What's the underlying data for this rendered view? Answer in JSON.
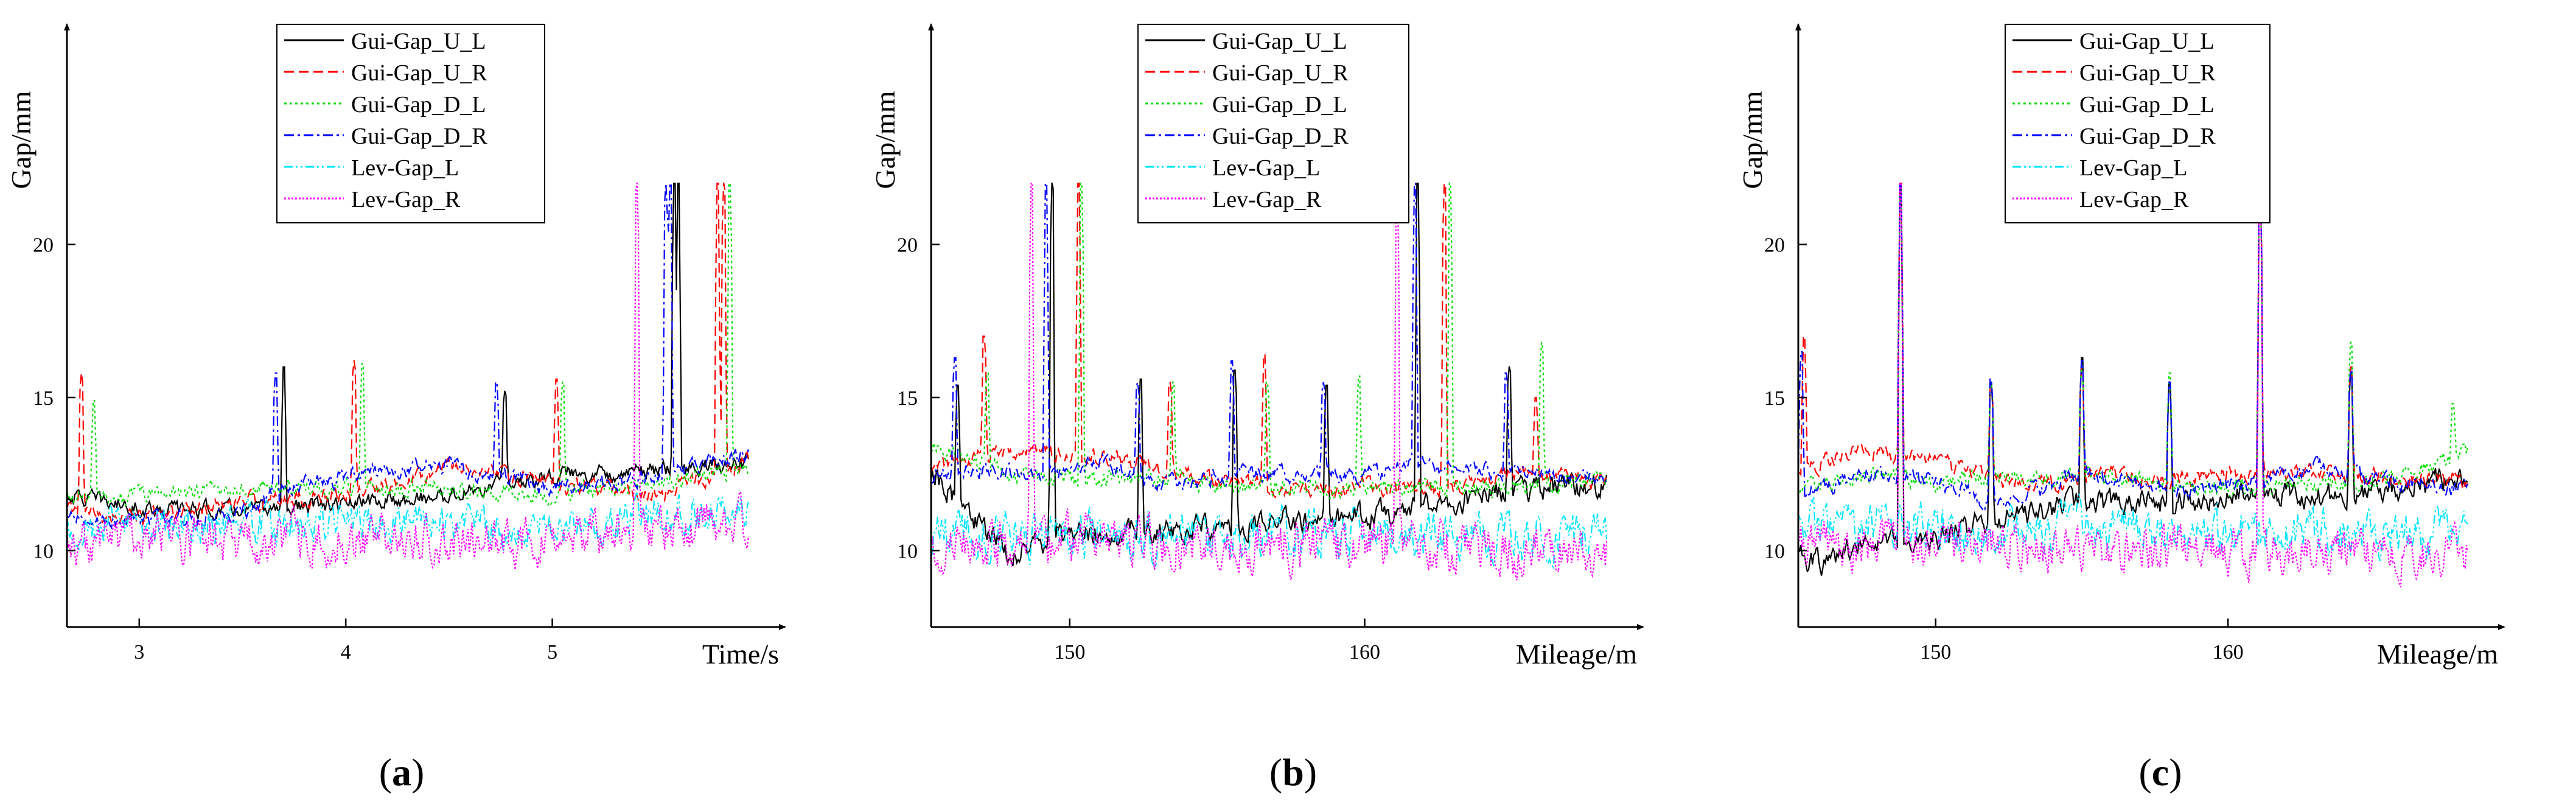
{
  "series_styles": [
    {
      "name": "Gui-Gap_U_L",
      "color": "#000000",
      "dash": "solid"
    },
    {
      "name": "Gui-Gap_U_R",
      "color": "#ff0000",
      "dash": "dashed"
    },
    {
      "name": "Gui-Gap_D_L",
      "color": "#00dd00",
      "dash": "dotted"
    },
    {
      "name": "Gui-Gap_D_R",
      "color": "#0000ff",
      "dash": "dashdot"
    },
    {
      "name": "Lev-Gap_L",
      "color": "#00e5ff",
      "dash": "dashdotdot"
    },
    {
      "name": "Lev-Gap_R",
      "color": "#ff00ff",
      "dash": "short-dot"
    }
  ],
  "chart_data": [
    {
      "type": "line",
      "panel_label": "(a)",
      "xlabel": "Time/s",
      "ylabel": "Gap/mm",
      "xlim": [
        2.65,
        5.95
      ],
      "ylim": [
        7.5,
        26
      ],
      "xticks": [
        3,
        4,
        5
      ],
      "yticks": [
        10,
        15,
        20
      ],
      "legend": "top-center",
      "series": [
        {
          "name": "Gui-Gap_U_L",
          "baseline": [
            [
              2.65,
              11.8
            ],
            [
              3.0,
              11.4
            ],
            [
              3.5,
              11.3
            ],
            [
              4.0,
              11.5
            ],
            [
              4.5,
              11.8
            ],
            [
              5.0,
              12.5
            ],
            [
              5.5,
              12.6
            ],
            [
              5.95,
              12.9
            ]
          ],
          "noise": 0.2,
          "spikes": [
            [
              3.7,
              16.0
            ],
            [
              4.77,
              15.2
            ],
            [
              5.59,
              22.0
            ],
            [
              5.61,
              22.0
            ]
          ]
        },
        {
          "name": "Gui-Gap_U_R",
          "baseline": [
            [
              2.65,
              11.3
            ],
            [
              3.0,
              11.0
            ],
            [
              3.5,
              11.6
            ],
            [
              4.0,
              11.8
            ],
            [
              4.5,
              12.8
            ],
            [
              5.0,
              12.2
            ],
            [
              5.5,
              11.8
            ],
            [
              5.95,
              12.9
            ]
          ],
          "noise": 0.2,
          "spikes": [
            [
              2.72,
              15.8
            ],
            [
              4.04,
              16.2
            ],
            [
              5.02,
              15.6
            ],
            [
              5.8,
              22.0
            ],
            [
              5.83,
              22.0
            ]
          ]
        },
        {
          "name": "Gui-Gap_D_L",
          "baseline": [
            [
              2.65,
              11.7
            ],
            [
              3.0,
              11.8
            ],
            [
              3.5,
              12.1
            ],
            [
              4.0,
              12.0
            ],
            [
              4.5,
              12.0
            ],
            [
              5.0,
              11.8
            ],
            [
              5.5,
              12.3
            ],
            [
              5.95,
              12.6
            ]
          ],
          "noise": 0.2,
          "spikes": [
            [
              2.78,
              14.9
            ],
            [
              4.08,
              16.1
            ],
            [
              5.05,
              15.5
            ],
            [
              5.86,
              22.0
            ]
          ]
        },
        {
          "name": "Gui-Gap_D_R",
          "baseline": [
            [
              2.65,
              11.0
            ],
            [
              3.0,
              11.0
            ],
            [
              3.5,
              11.2
            ],
            [
              3.7,
              12.0
            ],
            [
              4.0,
              12.4
            ],
            [
              4.5,
              12.8
            ],
            [
              5.0,
              12.0
            ],
            [
              5.5,
              12.4
            ],
            [
              5.95,
              13.2
            ]
          ],
          "noise": 0.2,
          "spikes": [
            [
              3.66,
              15.8
            ],
            [
              4.73,
              15.5
            ],
            [
              5.55,
              22.0
            ],
            [
              5.57,
              22.0
            ]
          ]
        },
        {
          "name": "Lev-Gap_L",
          "baseline": [
            [
              2.65,
              10.8
            ],
            [
              3.5,
              10.9
            ],
            [
              4.5,
              10.8
            ],
            [
              5.0,
              10.7
            ],
            [
              5.5,
              11.2
            ],
            [
              5.95,
              11.4
            ]
          ],
          "noise": 0.45,
          "spikes": []
        },
        {
          "name": "Lev-Gap_R",
          "baseline": [
            [
              2.65,
              10.3
            ],
            [
              3.5,
              10.4
            ],
            [
              4.5,
              10.3
            ],
            [
              5.0,
              10.3
            ],
            [
              5.5,
              10.7
            ],
            [
              5.95,
              11.0
            ]
          ],
          "noise": 0.55,
          "spikes": [
            [
              5.41,
              22.0
            ]
          ]
        }
      ]
    },
    {
      "type": "line",
      "panel_label": "(b)",
      "xlabel": "Mileage/m",
      "ylabel": "Gap/mm",
      "xlim": [
        145.3,
        168.2
      ],
      "ylim": [
        7.5,
        26
      ],
      "xticks": [
        150,
        160
      ],
      "yticks": [
        10,
        15,
        20
      ],
      "legend": "top-center",
      "series": [
        {
          "name": "Gui-Gap_U_L",
          "baseline": [
            [
              145.3,
              12.6
            ],
            [
              147,
              10.8
            ],
            [
              148,
              9.8
            ],
            [
              150,
              10.6
            ],
            [
              152,
              10.6
            ],
            [
              155,
              10.8
            ],
            [
              158,
              11.0
            ],
            [
              161,
              11.2
            ],
            [
              164,
              11.8
            ],
            [
              168.2,
              12.2
            ]
          ],
          "noise": 0.3,
          "spikes": [
            [
              146.2,
              15.4
            ],
            [
              149.4,
              22.0
            ],
            [
              152.4,
              15.6
            ],
            [
              155.6,
              15.9
            ],
            [
              158.7,
              15.4
            ],
            [
              161.8,
              22.0
            ],
            [
              164.9,
              16.0
            ]
          ]
        },
        {
          "name": "Gui-Gap_U_R",
          "baseline": [
            [
              145.3,
              12.7
            ],
            [
              148,
              13.2
            ],
            [
              150,
              13.2
            ],
            [
              152,
              13.0
            ],
            [
              154,
              12.4
            ],
            [
              156,
              12.2
            ],
            [
              158,
              11.9
            ],
            [
              160,
              12.1
            ],
            [
              163,
              12.0
            ],
            [
              165,
              12.6
            ],
            [
              168.2,
              12.2
            ]
          ],
          "noise": 0.2,
          "spikes": [
            [
              147.1,
              17.0
            ],
            [
              150.3,
              22.0
            ],
            [
              153.4,
              15.5
            ],
            [
              156.6,
              16.4
            ],
            [
              162.7,
              22.0
            ],
            [
              165.8,
              15.0
            ]
          ]
        },
        {
          "name": "Gui-Gap_D_L",
          "baseline": [
            [
              145.3,
              13.4
            ],
            [
              148,
              12.5
            ],
            [
              150,
              12.4
            ],
            [
              153,
              12.4
            ],
            [
              156,
              12.1
            ],
            [
              159,
              12.0
            ],
            [
              162,
              12.1
            ],
            [
              165,
              12.0
            ],
            [
              168.2,
              12.4
            ]
          ],
          "noise": 0.2,
          "spikes": [
            [
              147.2,
              15.8
            ],
            [
              150.4,
              22.0
            ],
            [
              153.5,
              15.5
            ],
            [
              156.7,
              15.5
            ],
            [
              159.8,
              15.7
            ],
            [
              162.9,
              22.0
            ],
            [
              166.0,
              16.8
            ]
          ]
        },
        {
          "name": "Gui-Gap_D_R",
          "baseline": [
            [
              145.3,
              12.4
            ],
            [
              147,
              12.6
            ],
            [
              150,
              12.5
            ],
            [
              151,
              13.0
            ],
            [
              153,
              12.1
            ],
            [
              156,
              12.6
            ],
            [
              159,
              12.4
            ],
            [
              162,
              12.8
            ],
            [
              165,
              12.5
            ],
            [
              168.2,
              12.4
            ]
          ],
          "noise": 0.2,
          "spikes": [
            [
              146.1,
              16.3
            ],
            [
              149.2,
              22.0
            ],
            [
              152.3,
              15.5
            ],
            [
              155.5,
              16.2
            ],
            [
              158.6,
              15.5
            ],
            [
              161.7,
              22.0
            ],
            [
              164.8,
              15.8
            ]
          ]
        },
        {
          "name": "Lev-Gap_L",
          "baseline": [
            [
              145.3,
              10.6
            ],
            [
              150,
              10.5
            ],
            [
              155,
              10.6
            ],
            [
              160,
              10.5
            ],
            [
              165,
              10.4
            ],
            [
              168.2,
              10.5
            ]
          ],
          "noise": 0.55,
          "spikes": []
        },
        {
          "name": "Lev-Gap_R",
          "baseline": [
            [
              145.3,
              10.2
            ],
            [
              150,
              10.3
            ],
            [
              155,
              10.3
            ],
            [
              160,
              10.2
            ],
            [
              165,
              10.0
            ],
            [
              168.2,
              10.0
            ]
          ],
          "noise": 0.6,
          "spikes": [
            [
              148.7,
              22.0
            ],
            [
              161.1,
              22.0
            ]
          ]
        }
      ]
    },
    {
      "type": "line",
      "panel_label": "(c)",
      "xlabel": "Mileage/m",
      "ylabel": "Gap/mm",
      "xlim": [
        145.3,
        168.2
      ],
      "ylim": [
        7.5,
        26
      ],
      "xticks": [
        150,
        160
      ],
      "yticks": [
        10,
        15,
        20
      ],
      "legend": "top-center",
      "series": [
        {
          "name": "Gui-Gap_U_L",
          "baseline": [
            [
              145.3,
              10.0
            ],
            [
              146,
              9.6
            ],
            [
              148,
              10.2
            ],
            [
              150,
              10.4
            ],
            [
              152,
              11.0
            ],
            [
              155,
              11.5
            ],
            [
              158,
              11.6
            ],
            [
              161,
              11.8
            ],
            [
              164,
              11.8
            ],
            [
              168.2,
              12.4
            ]
          ],
          "noise": 0.3,
          "spikes": [
            [
              148.8,
              22.0
            ],
            [
              151.9,
              15.5
            ],
            [
              155.0,
              16.3
            ],
            [
              158.0,
              15.5
            ],
            [
              161.1,
              22.0
            ],
            [
              164.2,
              15.8
            ]
          ]
        },
        {
          "name": "Gui-Gap_U_R",
          "baseline": [
            [
              145.3,
              12.6
            ],
            [
              147.5,
              13.3
            ],
            [
              150,
              12.9
            ],
            [
              152,
              12.3
            ],
            [
              154,
              12.2
            ],
            [
              156,
              12.5
            ],
            [
              158,
              12.3
            ],
            [
              160,
              12.5
            ],
            [
              163,
              12.5
            ],
            [
              165,
              12.4
            ],
            [
              168.2,
              12.3
            ]
          ],
          "noise": 0.2,
          "spikes": [
            [
              145.5,
              17.0
            ],
            [
              148.8,
              22.0
            ],
            [
              151.9,
              15.5
            ],
            [
              155.0,
              16.0
            ],
            [
              161.1,
              22.0
            ],
            [
              164.2,
              16.0
            ]
          ]
        },
        {
          "name": "Gui-Gap_D_L",
          "baseline": [
            [
              145.3,
              12.0
            ],
            [
              148,
              12.5
            ],
            [
              150,
              12.2
            ],
            [
              153,
              12.4
            ],
            [
              156,
              12.4
            ],
            [
              159,
              12.0
            ],
            [
              162,
              12.2
            ],
            [
              165,
              12.2
            ],
            [
              168.2,
              13.2
            ]
          ],
          "noise": 0.2,
          "spikes": [
            [
              148.8,
              22.0
            ],
            [
              151.9,
              15.5
            ],
            [
              155.0,
              16.0
            ],
            [
              158.0,
              15.8
            ],
            [
              161.1,
              22.0
            ],
            [
              164.2,
              16.8
            ],
            [
              167.7,
              14.8
            ]
          ]
        },
        {
          "name": "Gui-Gap_D_R",
          "baseline": [
            [
              145.3,
              11.8
            ],
            [
              147.5,
              12.5
            ],
            [
              150,
              12.3
            ],
            [
              152,
              11.5
            ],
            [
              155,
              12.5
            ],
            [
              158,
              12.0
            ],
            [
              161,
              12.2
            ],
            [
              163,
              12.8
            ],
            [
              165,
              12.3
            ],
            [
              168.2,
              12.0
            ]
          ],
          "noise": 0.2,
          "spikes": [
            [
              145.4,
              16.5
            ],
            [
              148.8,
              22.0
            ],
            [
              151.9,
              15.6
            ],
            [
              155.0,
              16.2
            ],
            [
              158.0,
              15.5
            ],
            [
              161.1,
              22.0
            ],
            [
              164.2,
              15.9
            ]
          ]
        },
        {
          "name": "Lev-Gap_L",
          "baseline": [
            [
              145.3,
              10.8
            ],
            [
              150,
              10.7
            ],
            [
              155,
              10.8
            ],
            [
              160,
              10.6
            ],
            [
              165,
              10.5
            ],
            [
              168.2,
              10.5
            ]
          ],
          "noise": 0.55,
          "spikes": []
        },
        {
          "name": "Lev-Gap_R",
          "baseline": [
            [
              145.3,
              10.2
            ],
            [
              150,
              10.2
            ],
            [
              155,
              10.1
            ],
            [
              160,
              10.0
            ],
            [
              165,
              10.0
            ],
            [
              168.2,
              9.9
            ]
          ],
          "noise": 0.55,
          "spikes": [
            [
              148.8,
              22.0
            ],
            [
              161.1,
              22.0
            ]
          ]
        }
      ]
    }
  ]
}
